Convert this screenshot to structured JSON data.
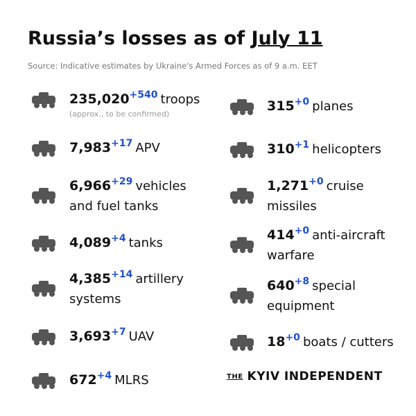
{
  "header": {
    "title": "Russia’s losses",
    "asof": "as of",
    "date": "July 11",
    "source": "Source: Indicative estimates by Ukraine's Armed Forces as of 9 a.m. EET"
  },
  "left": [
    {
      "value": "235,020",
      "change": "+540",
      "label": "troops",
      "note": "(approx., to be confirmed)"
    },
    {
      "value": "7,983",
      "change": "+17",
      "label": "APV"
    },
    {
      "value": "6,966",
      "change": "+29",
      "label": "vehicles",
      "label2": "and fuel tanks"
    },
    {
      "value": "4,089",
      "change": "+4",
      "label": "tanks"
    },
    {
      "value": "4,385",
      "change": "+14",
      "label": "artillery",
      "label2": "systems"
    },
    {
      "value": "3,693",
      "change": "+7",
      "label": "UAV"
    },
    {
      "value": "672",
      "change": "+4",
      "label": "MLRS"
    }
  ],
  "right": [
    {
      "value": "315",
      "change": "+0",
      "label": "planes"
    },
    {
      "value": "310",
      "change": "+1",
      "label": "helicopters"
    },
    {
      "value": "1,271",
      "change": "+0",
      "label": "cruise",
      "label2": "missiles"
    },
    {
      "value": "414",
      "change": "+0",
      "label": "anti-aircraft",
      "label2": "warfare"
    },
    {
      "value": "640",
      "change": "+8",
      "label": "special",
      "label2": "equipment"
    },
    {
      "value": "18",
      "change": "+0",
      "label": "boats / cutters"
    }
  ],
  "brand": {
    "prefix": "THE",
    "name": "KYIV INDEPENDENT"
  }
}
